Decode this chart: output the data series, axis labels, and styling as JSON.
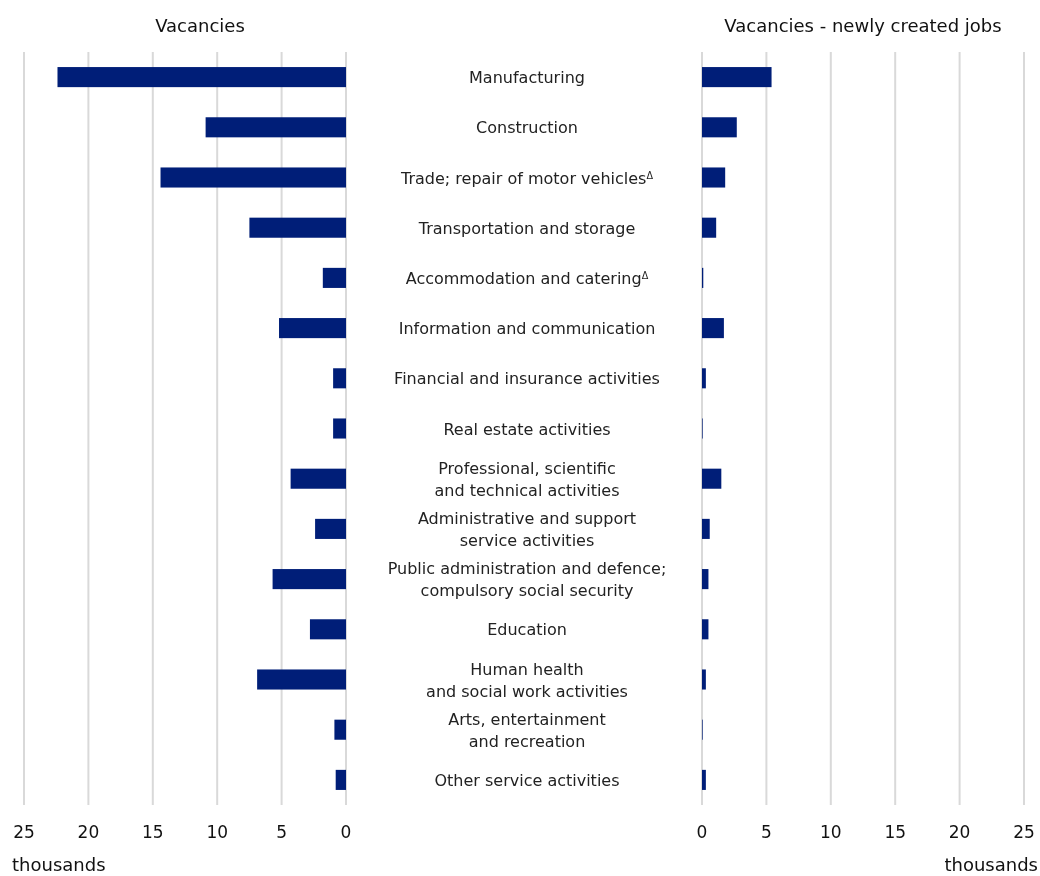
{
  "chart_data": [
    {
      "type": "bar",
      "orientation": "horizontal",
      "title": "Vacancies",
      "xlabel": "thousands",
      "categories": [
        "Manufacturing",
        "Construction",
        "Trade; repair of motor vehicles$^{Δ}$",
        "Transportation and storage",
        "Accommodation and catering$^{Δ}$",
        "Information and communication",
        "Financial and insurance activities",
        "Real estate activities",
        "Professional, scientific\nand technical activities",
        "Administrative and support\nservice activities",
        "Public administration and defence;\ncompulsory social security",
        "Education",
        "Human health\nand social work activities",
        "Arts, entertainment\nand recreation",
        "Other service activities"
      ],
      "series": [
        {
          "color": "#001e78",
          "values": [
            22.4,
            10.9,
            14.4,
            7.5,
            1.8,
            5.2,
            1.0,
            1.0,
            4.3,
            2.4,
            5.7,
            2.8,
            6.9,
            0.9,
            0.8
          ]
        }
      ],
      "xlim": [
        25,
        0
      ],
      "xticks": [
        25,
        20,
        15,
        10,
        5,
        0
      ],
      "grid": "x"
    },
    {
      "type": "bar",
      "orientation": "horizontal",
      "title": "Vacancies - newly created jobs",
      "xlabel": "thousands",
      "categories": [
        "Manufacturing",
        "Construction",
        "Trade; repair of motor vehicles$^{Δ}$",
        "Transportation and storage",
        "Accommodation and catering$^{Δ}$",
        "Information and communication",
        "Financial and insurance activities",
        "Real estate activities",
        "Professional, scientific\nand technical activities",
        "Administrative and support\nservice activities",
        "Public administration and defence;\ncompulsory social security",
        "Education",
        "Human health\nand social work activities",
        "Arts, entertainment\nand recreation",
        "Other service activities"
      ],
      "series": [
        {
          "color": "#001e78",
          "values": [
            5.4,
            2.7,
            1.8,
            1.1,
            0.1,
            1.7,
            0.3,
            0.05,
            1.5,
            0.6,
            0.5,
            0.5,
            0.3,
            0.05,
            0.3
          ]
        }
      ],
      "xlim": [
        0,
        25
      ],
      "xticks": [
        0,
        5,
        10,
        15,
        20,
        25
      ],
      "grid": "x",
      "tick_labels": "x"
    }
  ]
}
